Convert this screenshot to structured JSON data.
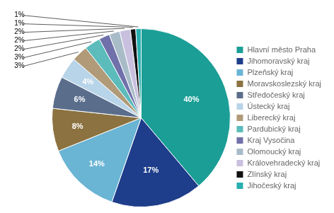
{
  "chart_data": {
    "type": "pie",
    "categories": [
      "Hlavní město Praha",
      "Jihomoravský kraj",
      "Plzeňský kraj",
      "Moravskoslezský kraj",
      "Středočeský kraj",
      "Ústecký kraj",
      "Liberecký kraj",
      "Pardubický kraj",
      "Kraj Vysočina",
      "Olomoucký kraj",
      "Královehradecký kraj",
      "Zlínský kraj",
      "Jihočeský kraj"
    ],
    "values": [
      40,
      17,
      14,
      8,
      6,
      4,
      3,
      3,
      2,
      2,
      2,
      1,
      1
    ],
    "value_labels": [
      "40%",
      "17%",
      "14%",
      "8%",
      "6%",
      "4%",
      "3%",
      "3%",
      "2%",
      "2%",
      "2%",
      "1%",
      "1%"
    ],
    "colors": [
      "#1a9e96",
      "#1e3d8a",
      "#6ab4d4",
      "#8b7240",
      "#5a6e8c",
      "#b8d4e8",
      "#b09a78",
      "#5bbcbb",
      "#7070aa",
      "#a8bcc8",
      "#c8c0de",
      "#111111",
      "#29afaf"
    ],
    "data_labels": true,
    "legend": "right"
  }
}
